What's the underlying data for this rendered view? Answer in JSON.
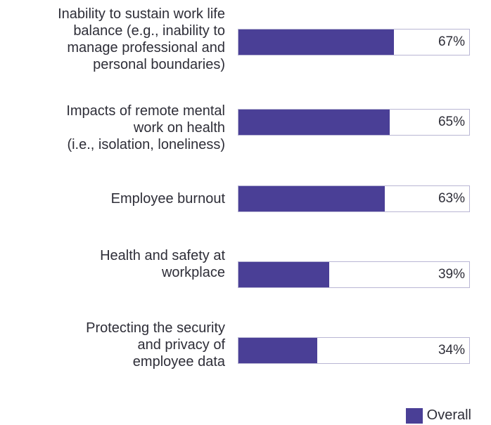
{
  "chart_data": {
    "type": "bar",
    "orientation": "horizontal",
    "categories": [
      "Inability to sustain work life\nbalance (e.g., inability to\nmanage professional and\npersonal boundaries)",
      "Impacts of remote  mental\nwork on health\n(i.e., isolation, loneliness)",
      "Employee burnout",
      "Health and safety at\nworkplace",
      "Protecting the security\nand privacy of\nemployee data"
    ],
    "series": [
      {
        "name": "Overall",
        "values": [
          67,
          65,
          63,
          39,
          34
        ],
        "labels": [
          "67%",
          "65%",
          "63%",
          "39%",
          "34%"
        ]
      }
    ],
    "xlim": [
      0,
      100
    ],
    "legend_position": "bottom-right",
    "grid": false,
    "colors": {
      "bar": "#4a3f96",
      "track_border": "#b9b6d4"
    }
  }
}
